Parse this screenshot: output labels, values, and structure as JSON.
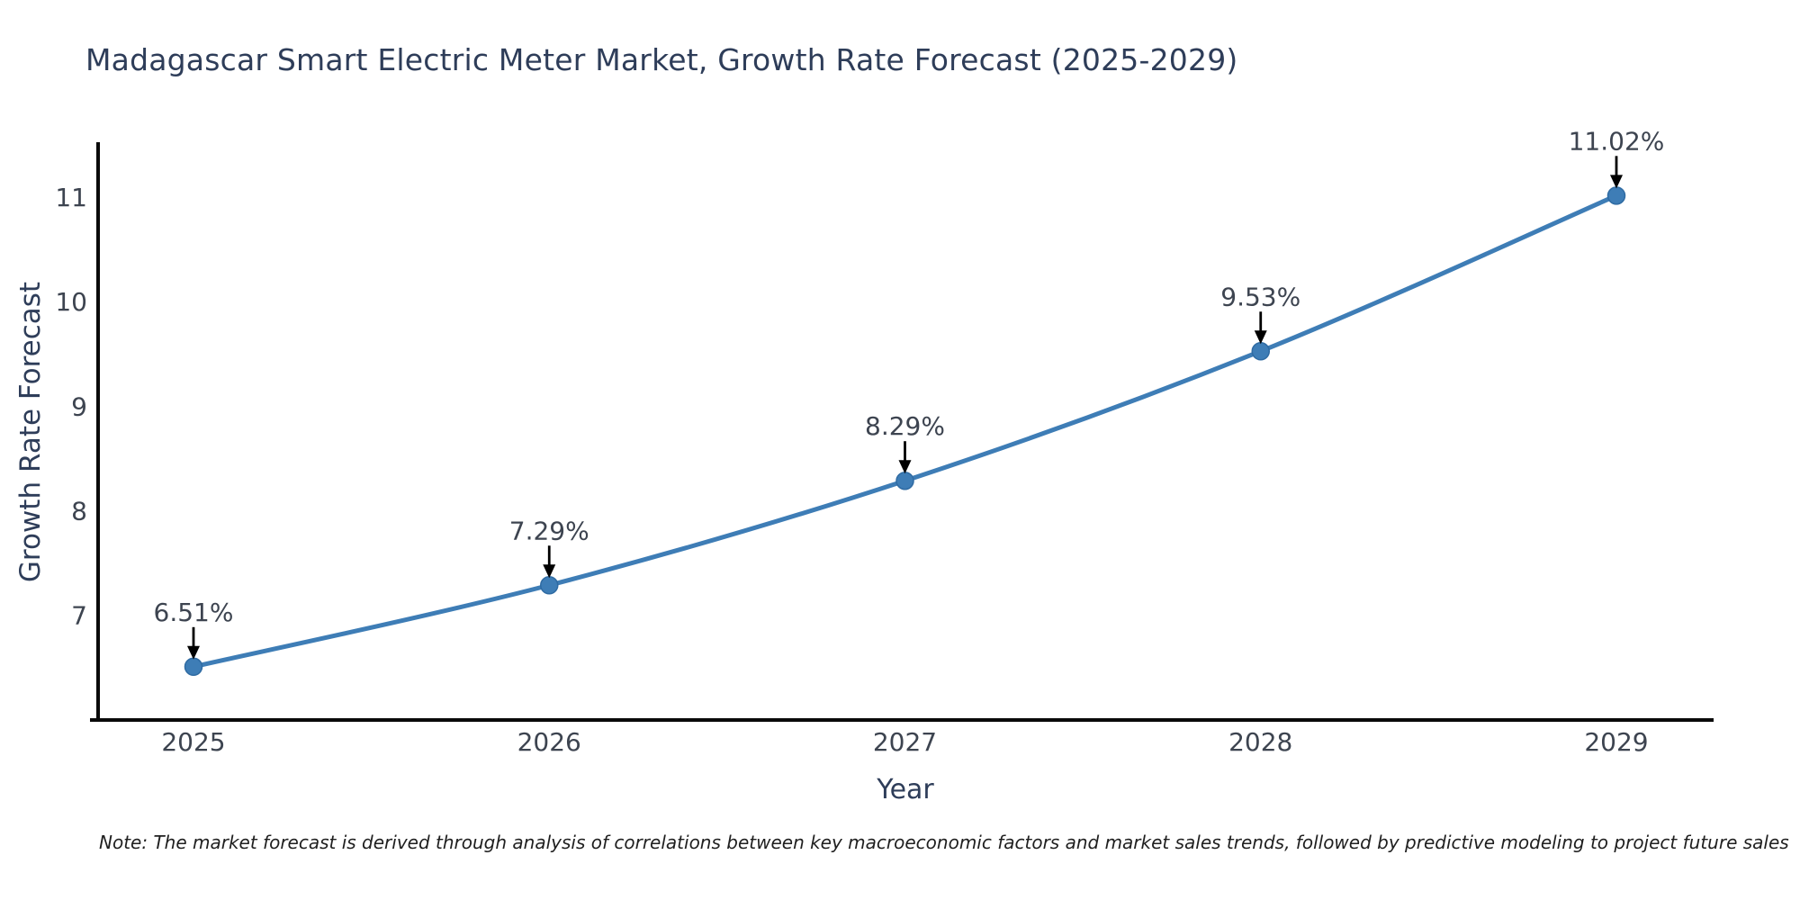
{
  "chart_data": {
    "type": "line",
    "title": "Madagascar Smart Electric Meter Market, Growth Rate Forecast (2025-2029)",
    "xlabel": "Year",
    "ylabel": "Growth Rate Forecast",
    "categories": [
      "2025",
      "2026",
      "2027",
      "2028",
      "2029"
    ],
    "series": [
      {
        "name": "Growth Rate Forecast",
        "values": [
          6.51,
          7.29,
          8.29,
          9.53,
          11.02
        ],
        "point_labels": [
          "6.51%",
          "7.29%",
          "8.29%",
          "9.53%",
          "11.02%"
        ]
      }
    ],
    "yticks": [
      7,
      8,
      9,
      10,
      11
    ],
    "ylim": [
      6.0,
      11.6
    ],
    "grid": false,
    "legend": "none",
    "annotation_style": "value label with downward black arrow above each marker",
    "note": "Note: The market forecast is derived through analysis of correlations between key macroeconomic factors and market sales trends, followed by predictive modeling to project future sales",
    "colors": {
      "line": "#3e7db6",
      "marker": "#3e7db6",
      "marker_edge": "#2f6ba3",
      "axis": "#0a0a0a",
      "title_text": "#2e3d59",
      "tick_text": "#3d4450",
      "annotation_text": "#3d4450",
      "arrow": "#000000",
      "note_text": "#1f1f1f"
    }
  }
}
